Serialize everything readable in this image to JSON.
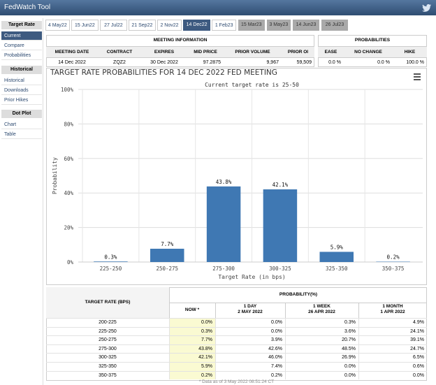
{
  "header": {
    "title": "FedWatch Tool"
  },
  "sidebar": [
    {
      "title": "Target Rate",
      "items": [
        "Current",
        "Compare",
        "Probabilities"
      ]
    },
    {
      "title": "Historical",
      "items": [
        "Historical",
        "Downloads",
        "Prior Hikes"
      ]
    },
    {
      "title": "Dot Plot",
      "items": [
        "Chart",
        "Table"
      ]
    }
  ],
  "tabs": [
    "4 May22",
    "15 Jun22",
    "27 Jul22",
    "21 Sep22",
    "2 Nov22",
    "14 Dec22",
    "1 Feb23",
    "15 Mar23",
    "3 May23",
    "14 Jun23",
    "26 Jul23"
  ],
  "meeting_info": {
    "title": "MEETING INFORMATION",
    "headers": [
      "MEETING DATE",
      "CONTRACT",
      "EXPIRES",
      "MID PRICE",
      "PRIOR VOLUME",
      "PRIOR OI"
    ],
    "row": [
      "14 Dec 2022",
      "ZQZ2",
      "30 Dec 2022",
      "97.2875",
      "9,967",
      "59,509"
    ]
  },
  "probabilities": {
    "title": "PROBABILITIES",
    "headers": [
      "EASE",
      "NO CHANGE",
      "HIKE"
    ],
    "row": [
      "0.0 %",
      "0.0 %",
      "100.0 %"
    ]
  },
  "chart_data": {
    "type": "bar",
    "title": "TARGET RATE PROBABILITIES FOR 14 DEC 2022 FED MEETING",
    "subtitle": "Current target rate is 25-50",
    "x_label": "Target Rate (in bps)",
    "y_label": "Probability",
    "categories": [
      "225-250",
      "250-275",
      "275-300",
      "300-325",
      "325-350",
      "350-375"
    ],
    "values": [
      0.3,
      7.7,
      43.8,
      42.1,
      5.9,
      0.2
    ],
    "value_labels": [
      "0.3%",
      "7.7%",
      "43.8%",
      "42.1%",
      "5.9%",
      "0.2%"
    ],
    "color": "#3f78b3",
    "ylim": [
      0,
      100
    ],
    "yticks": [
      {
        "value": 0,
        "label": "0%"
      },
      {
        "value": 20,
        "label": "20%"
      },
      {
        "value": 40,
        "label": "40%"
      },
      {
        "value": 60,
        "label": "60%"
      },
      {
        "value": 80,
        "label": "80%"
      },
      {
        "value": 100,
        "label": "100%"
      }
    ],
    "grid": true
  },
  "table": {
    "title": "PROBABILITY(%)",
    "rate_header": "TARGET RATE (BPS)",
    "sub_headers": [
      [
        "NOW *"
      ],
      [
        "1 DAY",
        "2 MAY 2022"
      ],
      [
        "1 WEEK",
        "26 APR 2022"
      ],
      [
        "1 MONTH",
        "1 APR 2022"
      ]
    ],
    "rows": [
      [
        "200-225",
        "0.0%",
        "0.0%",
        "0.3%",
        "4.9%"
      ],
      [
        "225-250",
        "0.3%",
        "0.0%",
        "3.6%",
        "24.1%"
      ],
      [
        "250-275",
        "7.7%",
        "3.9%",
        "20.7%",
        "39.1%"
      ],
      [
        "275-300",
        "43.8%",
        "42.6%",
        "48.5%",
        "24.7%"
      ],
      [
        "300-325",
        "42.1%",
        "46.0%",
        "26.9%",
        "6.5%"
      ],
      [
        "325-350",
        "5.9%",
        "7.4%",
        "0.0%",
        "0.6%"
      ],
      [
        "350-375",
        "0.2%",
        "0.2%",
        "0.0%",
        "0.0%"
      ]
    ],
    "footnote": "* Data as of 3 May 2022 08:51:24 CT"
  }
}
